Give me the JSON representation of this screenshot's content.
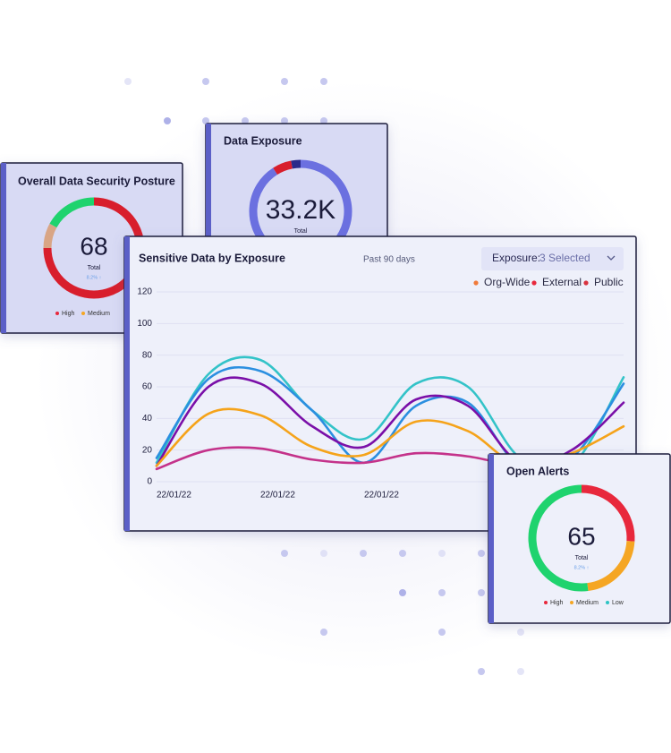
{
  "chart_data": [
    {
      "type": "donut",
      "title": "Overall Data Security Posture",
      "center_label": "68",
      "center_sublabel": "Total",
      "change": "8.2% ↑",
      "categories": [
        "High",
        "Medium",
        null
      ],
      "values": [
        75,
        8,
        17
      ],
      "colors": [
        "#d81e2c",
        "#d9a585",
        "#1fd36e"
      ],
      "legend_colors": [
        "#e8283c",
        "#f5a623",
        "#2ec4c4"
      ]
    },
    {
      "type": "donut",
      "title": "Data Exposure",
      "center_label": "33.2K",
      "center_sublabel": "Total",
      "values": [
        91,
        6,
        3
      ],
      "colors": [
        "#6b70e0",
        "#d81e2c",
        "#2a2a8a"
      ]
    },
    {
      "type": "line",
      "title": "Sensitive Data by Exposure",
      "subtitle": "Past 90 days",
      "filter_label": "Exposure:",
      "filter_value": "3 Selected",
      "categories": [
        "22/01/22",
        null,
        "22/01/22",
        null,
        "22/01/22",
        null,
        null,
        null,
        null,
        null
      ],
      "series": [
        {
          "color": "#33c3c8",
          "values": [
            12,
            68,
            77,
            45,
            27,
            62,
            60,
            15,
            10,
            66
          ]
        },
        {
          "color": "#2b8fe0",
          "values": [
            15,
            65,
            70,
            45,
            12,
            48,
            50,
            10,
            15,
            62
          ]
        },
        {
          "color": "#7a0fa8",
          "values": [
            10,
            60,
            62,
            35,
            22,
            52,
            48,
            12,
            20,
            50
          ]
        },
        {
          "color": "#f5a31a",
          "values": [
            10,
            43,
            42,
            22,
            17,
            38,
            32,
            10,
            18,
            35
          ]
        },
        {
          "color": "#c4328a",
          "values": [
            8,
            20,
            21,
            14,
            12,
            18,
            16,
            10,
            12,
            15
          ]
        }
      ],
      "legend": [
        {
          "name": "Org-Wide",
          "color": "#f07a3a"
        },
        {
          "name": "External",
          "color": "#e8283c"
        },
        {
          "name": "Public",
          "color": "#d8323e"
        }
      ],
      "ylim": [
        0,
        120
      ],
      "yticks": [
        0,
        20,
        40,
        60,
        80,
        100,
        120
      ],
      "grid": true
    },
    {
      "type": "donut",
      "title": "Open Alerts",
      "center_label": "65",
      "center_sublabel": "Total",
      "change": "8.2% ↑",
      "categories": [
        "High",
        "Medium",
        "Low"
      ],
      "values": [
        26,
        22,
        52
      ],
      "colors": [
        "#e8283c",
        "#f5a623",
        "#1fd36e"
      ],
      "legend_colors": [
        "#e8283c",
        "#f5a623",
        "#2ec4c4"
      ]
    }
  ]
}
